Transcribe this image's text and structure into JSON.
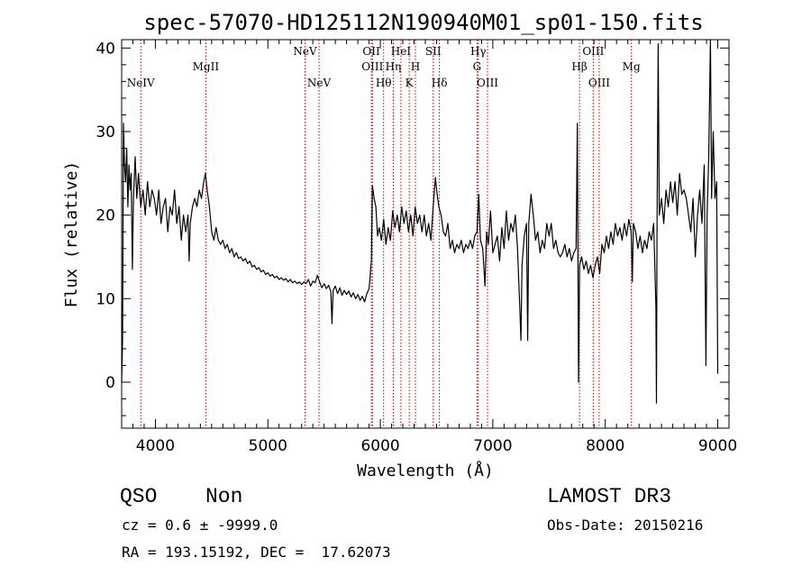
{
  "chart_data": {
    "type": "line",
    "title": "spec-57070-HD125112N190940M01_sp01-150.fits",
    "xlabel": "Wavelength (Å)",
    "ylabel": "Flux (relative)",
    "xlim": [
      3700,
      9100
    ],
    "ylim": [
      -5.5,
      41
    ],
    "x_ticks": [
      4000,
      5000,
      6000,
      7000,
      8000,
      9000
    ],
    "y_ticks": [
      0,
      10,
      20,
      30,
      40
    ],
    "grid": false,
    "series": [
      {
        "points": [
          [
            3700,
            0
          ],
          [
            3708,
            5
          ],
          [
            3716,
            31
          ],
          [
            3725,
            26
          ],
          [
            3735,
            24
          ],
          [
            3745,
            28
          ],
          [
            3755,
            21
          ],
          [
            3765,
            26
          ],
          [
            3775,
            23
          ],
          [
            3785,
            25
          ],
          [
            3795,
            13.5
          ],
          [
            3805,
            22
          ],
          [
            3820,
            27
          ],
          [
            3835,
            22
          ],
          [
            3850,
            25
          ],
          [
            3870,
            21
          ],
          [
            3890,
            23
          ],
          [
            3910,
            20
          ],
          [
            3930,
            24
          ],
          [
            3950,
            21
          ],
          [
            3970,
            23
          ],
          [
            3990,
            22
          ],
          [
            4010,
            20
          ],
          [
            4030,
            23
          ],
          [
            4050,
            19
          ],
          [
            4070,
            21
          ],
          [
            4090,
            22
          ],
          [
            4110,
            18
          ],
          [
            4130,
            21
          ],
          [
            4150,
            20
          ],
          [
            4170,
            23
          ],
          [
            4190,
            19
          ],
          [
            4210,
            21
          ],
          [
            4230,
            17
          ],
          [
            4250,
            20
          ],
          [
            4270,
            18
          ],
          [
            4290,
            20
          ],
          [
            4300,
            14.5
          ],
          [
            4310,
            19
          ],
          [
            4330,
            21
          ],
          [
            4350,
            22
          ],
          [
            4370,
            21
          ],
          [
            4390,
            23
          ],
          [
            4410,
            22
          ],
          [
            4430,
            24
          ],
          [
            4445,
            25
          ],
          [
            4460,
            23
          ],
          [
            4480,
            21
          ],
          [
            4500,
            18
          ],
          [
            4520,
            17
          ],
          [
            4540,
            18.5
          ],
          [
            4560,
            17
          ],
          [
            4580,
            16.5
          ],
          [
            4600,
            17
          ],
          [
            4620,
            16
          ],
          [
            4640,
            16.5
          ],
          [
            4660,
            15.5
          ],
          [
            4680,
            16
          ],
          [
            4700,
            15
          ],
          [
            4720,
            15.5
          ],
          [
            4740,
            14.8
          ],
          [
            4760,
            15
          ],
          [
            4780,
            14.5
          ],
          [
            4800,
            14.8
          ],
          [
            4820,
            14.2
          ],
          [
            4840,
            14.5
          ],
          [
            4860,
            13.8
          ],
          [
            4880,
            14
          ],
          [
            4900,
            13.5
          ],
          [
            4920,
            13.7
          ],
          [
            4940,
            13.2
          ],
          [
            4960,
            13.4
          ],
          [
            4980,
            12.9
          ],
          [
            5000,
            13.1
          ],
          [
            5020,
            12.7
          ],
          [
            5040,
            12.9
          ],
          [
            5060,
            12.5
          ],
          [
            5080,
            12.7
          ],
          [
            5100,
            12.3
          ],
          [
            5120,
            12.5
          ],
          [
            5140,
            12.2
          ],
          [
            5160,
            12.4
          ],
          [
            5180,
            12.0
          ],
          [
            5200,
            12.3
          ],
          [
            5220,
            11.9
          ],
          [
            5240,
            12.1
          ],
          [
            5260,
            11.8
          ],
          [
            5280,
            12.0
          ],
          [
            5300,
            11.7
          ],
          [
            5320,
            12.0
          ],
          [
            5340,
            11.8
          ],
          [
            5360,
            12.3
          ],
          [
            5380,
            11.5
          ],
          [
            5400,
            12.1
          ],
          [
            5420,
            11.9
          ],
          [
            5440,
            12.8
          ],
          [
            5460,
            12.0
          ],
          [
            5480,
            11.3
          ],
          [
            5500,
            11.8
          ],
          [
            5520,
            11.2
          ],
          [
            5540,
            11.6
          ],
          [
            5560,
            10.8
          ],
          [
            5570,
            7.0
          ],
          [
            5580,
            11.0
          ],
          [
            5600,
            11.5
          ],
          [
            5620,
            10.6
          ],
          [
            5640,
            11.3
          ],
          [
            5660,
            10.4
          ],
          [
            5680,
            11.0
          ],
          [
            5700,
            10.5
          ],
          [
            5720,
            10.9
          ],
          [
            5740,
            10.2
          ],
          [
            5760,
            10.7
          ],
          [
            5780,
            10.0
          ],
          [
            5800,
            10.5
          ],
          [
            5820,
            9.8
          ],
          [
            5840,
            10.3
          ],
          [
            5860,
            9.6
          ],
          [
            5880,
            10.6
          ],
          [
            5900,
            11.2
          ],
          [
            5920,
            14.5
          ],
          [
            5930,
            23.5
          ],
          [
            5945,
            22
          ],
          [
            5960,
            21
          ],
          [
            5975,
            17.5
          ],
          [
            5990,
            18.5
          ],
          [
            6010,
            17
          ],
          [
            6030,
            19.5
          ],
          [
            6050,
            16.5
          ],
          [
            6070,
            18.5
          ],
          [
            6090,
            17
          ],
          [
            6110,
            20.5
          ],
          [
            6130,
            18.5
          ],
          [
            6150,
            20
          ],
          [
            6170,
            18
          ],
          [
            6190,
            21
          ],
          [
            6210,
            19
          ],
          [
            6230,
            20.5
          ],
          [
            6250,
            18
          ],
          [
            6270,
            20
          ],
          [
            6290,
            17.5
          ],
          [
            6310,
            21
          ],
          [
            6330,
            19
          ],
          [
            6350,
            20
          ],
          [
            6370,
            18
          ],
          [
            6390,
            20
          ],
          [
            6410,
            17.5
          ],
          [
            6430,
            19
          ],
          [
            6450,
            17
          ],
          [
            6470,
            21
          ],
          [
            6490,
            24.5
          ],
          [
            6505,
            22.5
          ],
          [
            6520,
            21
          ],
          [
            6540,
            20
          ],
          [
            6560,
            18
          ],
          [
            6580,
            17.5
          ],
          [
            6600,
            19
          ],
          [
            6620,
            16
          ],
          [
            6640,
            17
          ],
          [
            6660,
            15.5
          ],
          [
            6680,
            16.5
          ],
          [
            6700,
            16
          ],
          [
            6720,
            17
          ],
          [
            6740,
            15.5
          ],
          [
            6760,
            16.5
          ],
          [
            6780,
            16
          ],
          [
            6800,
            17
          ],
          [
            6820,
            16
          ],
          [
            6840,
            17.5
          ],
          [
            6860,
            18
          ],
          [
            6875,
            22.5
          ],
          [
            6890,
            17
          ],
          [
            6910,
            16
          ],
          [
            6930,
            11.5
          ],
          [
            6945,
            18
          ],
          [
            6960,
            16.5
          ],
          [
            6980,
            20.5
          ],
          [
            7000,
            15.5
          ],
          [
            7020,
            16.5
          ],
          [
            7040,
            17.5
          ],
          [
            7060,
            14.5
          ],
          [
            7080,
            18.5
          ],
          [
            7100,
            16
          ],
          [
            7120,
            20.5
          ],
          [
            7140,
            17
          ],
          [
            7160,
            19
          ],
          [
            7180,
            18
          ],
          [
            7200,
            20
          ],
          [
            7220,
            16
          ],
          [
            7240,
            9
          ],
          [
            7250,
            5
          ],
          [
            7260,
            14
          ],
          [
            7280,
            17.5
          ],
          [
            7300,
            19
          ],
          [
            7310,
            5
          ],
          [
            7320,
            19
          ],
          [
            7340,
            22.5
          ],
          [
            7360,
            20
          ],
          [
            7380,
            17
          ],
          [
            7400,
            18
          ],
          [
            7420,
            15.5
          ],
          [
            7440,
            17
          ],
          [
            7460,
            16
          ],
          [
            7480,
            19
          ],
          [
            7500,
            17.5
          ],
          [
            7520,
            19
          ],
          [
            7540,
            16
          ],
          [
            7560,
            17
          ],
          [
            7580,
            15.5
          ],
          [
            7600,
            15
          ],
          [
            7620,
            15.5
          ],
          [
            7640,
            16.5
          ],
          [
            7660,
            15
          ],
          [
            7680,
            16
          ],
          [
            7700,
            14.5
          ],
          [
            7720,
            15.5
          ],
          [
            7740,
            16
          ],
          [
            7752,
            31
          ],
          [
            7762,
            0
          ],
          [
            7772,
            14
          ],
          [
            7790,
            15
          ],
          [
            7810,
            13.5
          ],
          [
            7830,
            14.5
          ],
          [
            7850,
            13
          ],
          [
            7870,
            14
          ],
          [
            7890,
            12.5
          ],
          [
            7910,
            14
          ],
          [
            7930,
            15
          ],
          [
            7950,
            13
          ],
          [
            7970,
            16.5
          ],
          [
            7990,
            15.5
          ],
          [
            8010,
            17.5
          ],
          [
            8030,
            16
          ],
          [
            8050,
            18
          ],
          [
            8070,
            16.5
          ],
          [
            8090,
            19
          ],
          [
            8110,
            17.5
          ],
          [
            8130,
            18.5
          ],
          [
            8150,
            17
          ],
          [
            8170,
            19
          ],
          [
            8190,
            17.5
          ],
          [
            8210,
            19.5
          ],
          [
            8230,
            18
          ],
          [
            8240,
            12
          ],
          [
            8250,
            19
          ],
          [
            8270,
            18
          ],
          [
            8290,
            16
          ],
          [
            8310,
            17.5
          ],
          [
            8330,
            15.5
          ],
          [
            8350,
            17
          ],
          [
            8370,
            16
          ],
          [
            8390,
            18
          ],
          [
            8410,
            17
          ],
          [
            8430,
            19
          ],
          [
            8450,
            9
          ],
          [
            8455,
            -2.5
          ],
          [
            8460,
            18
          ],
          [
            8470,
            40.5
          ],
          [
            8480,
            20
          ],
          [
            8500,
            22
          ],
          [
            8520,
            19
          ],
          [
            8540,
            23
          ],
          [
            8560,
            21
          ],
          [
            8580,
            24
          ],
          [
            8600,
            21.5
          ],
          [
            8620,
            24
          ],
          [
            8640,
            20
          ],
          [
            8660,
            25
          ],
          [
            8680,
            22.5
          ],
          [
            8700,
            23
          ],
          [
            8720,
            22
          ],
          [
            8740,
            20
          ],
          [
            8760,
            18
          ],
          [
            8780,
            22
          ],
          [
            8800,
            15
          ],
          [
            8820,
            20
          ],
          [
            8840,
            23
          ],
          [
            8860,
            19
          ],
          [
            8880,
            26
          ],
          [
            8895,
            2
          ],
          [
            8905,
            20
          ],
          [
            8920,
            27
          ],
          [
            8935,
            41
          ],
          [
            8945,
            22
          ],
          [
            8960,
            30
          ],
          [
            8975,
            22
          ],
          [
            8990,
            24
          ],
          [
            9000,
            1
          ]
        ]
      }
    ],
    "lines": [
      {
        "name": "NeIV",
        "x": 3870,
        "row": 1
      },
      {
        "name": "MgII",
        "x": 4448,
        "row": 0
      },
      {
        "name": "NeV",
        "x": 5331,
        "row": -1
      },
      {
        "name": "NeV",
        "x": 5455,
        "row": 1
      },
      {
        "name": "OII",
        "x": 5920,
        "row": -1
      },
      {
        "name": "OIII",
        "x": 5930,
        "row": 0
      },
      {
        "name": "Hθ",
        "x": 6029,
        "row": 1
      },
      {
        "name": "Hη",
        "x": 6115,
        "row": 0
      },
      {
        "name": "HeI",
        "x": 6183,
        "row": -1
      },
      {
        "name": "K",
        "x": 6257,
        "row": 1
      },
      {
        "name": "H",
        "x": 6312,
        "row": 0
      },
      {
        "name": "SII",
        "x": 6470,
        "row": -1
      },
      {
        "name": "Hδ",
        "x": 6525,
        "row": 1
      },
      {
        "name": "G",
        "x": 6860,
        "row": 0
      },
      {
        "name": "Hγ",
        "x": 6871,
        "row": -1
      },
      {
        "name": "OIII",
        "x": 6953,
        "row": 1
      },
      {
        "name": "Hβ",
        "x": 7771,
        "row": 0
      },
      {
        "name": "OIII",
        "x": 7893,
        "row": -1
      },
      {
        "name": "OIII",
        "x": 7946,
        "row": 1
      },
      {
        "name": "Mg",
        "x": 8232,
        "row": 0
      }
    ]
  },
  "info": {
    "class": "QSO",
    "subclass": "Non",
    "cz": "cz = 0.6 ± -9999.0",
    "radec": "RA = 193.15192, DEC =  17.62073",
    "survey": "LAMOST DR3",
    "obs_date": "Obs-Date: 20150216"
  }
}
